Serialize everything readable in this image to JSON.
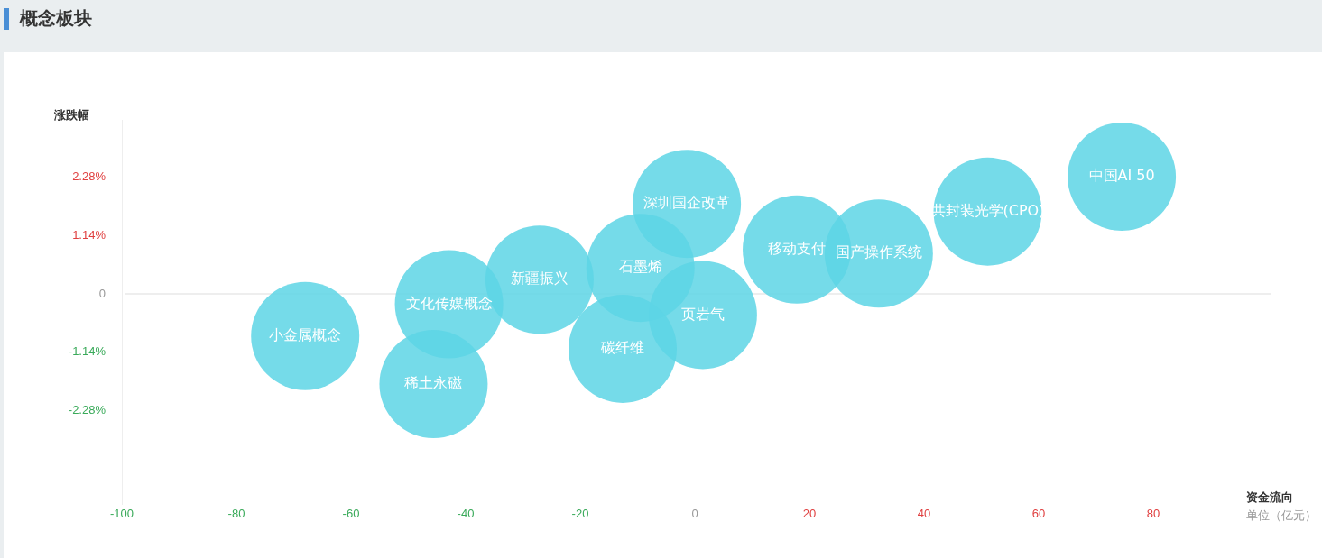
{
  "chart_data": {
    "type": "bubble",
    "title": "概念板块",
    "xlabel": "资金流向",
    "ylabel": "涨跌幅",
    "annotations": [
      "单位（亿元）"
    ],
    "xlim": [
      -100,
      100
    ],
    "xticks": [
      -100,
      -80,
      -60,
      -40,
      -20,
      0,
      20,
      40,
      60,
      80
    ],
    "ylim": [
      -4.1,
      3.4
    ],
    "yticks": [
      {
        "value": -2.28,
        "label": "-2.28%"
      },
      {
        "value": -1.14,
        "label": "-1.14%"
      },
      0,
      {
        "value": 1.14,
        "label": "1.14%"
      },
      {
        "value": 2.28,
        "label": "2.28%"
      }
    ],
    "grid": false,
    "legend": false,
    "ref_lines": [
      {
        "axis": "y",
        "value": 0,
        "color": "#eeeeee"
      }
    ],
    "series": [
      {
        "name": "小金属概念",
        "color": "#5dd5e5",
        "x": [
          -68
        ],
        "values": [
          -0.82
        ],
        "sizes": [
          1
        ]
      },
      {
        "name": "稀土永磁",
        "color": "#5dd5e5",
        "x": [
          -45.6
        ],
        "values": [
          -1.76
        ],
        "sizes": [
          1
        ]
      },
      {
        "name": "文化传媒概念",
        "color": "#5dd5e5",
        "x": [
          -42.9
        ],
        "values": [
          -0.2
        ],
        "sizes": [
          1
        ]
      },
      {
        "name": "新疆振兴",
        "color": "#5dd5e5",
        "x": [
          -27.1
        ],
        "values": [
          0.28
        ],
        "sizes": [
          1
        ]
      },
      {
        "name": "碳纤维",
        "color": "#5dd5e5",
        "x": [
          -12.6
        ],
        "values": [
          -1.07
        ],
        "sizes": [
          1
        ]
      },
      {
        "name": "石墨烯",
        "color": "#5dd5e5",
        "x": [
          -9.5
        ],
        "values": [
          0.51
        ],
        "sizes": [
          1
        ]
      },
      {
        "name": "深圳国企改革",
        "color": "#5dd5e5",
        "x": [
          -1.4
        ],
        "values": [
          1.76
        ],
        "sizes": [
          1
        ]
      },
      {
        "name": "页岩气",
        "color": "#5dd5e5",
        "x": [
          1.4
        ],
        "values": [
          -0.41
        ],
        "sizes": [
          1
        ]
      },
      {
        "name": "移动支付",
        "color": "#5dd5e5",
        "x": [
          17.8
        ],
        "values": [
          0.87
        ],
        "sizes": [
          1
        ]
      },
      {
        "name": "国产操作系统",
        "color": "#5dd5e5",
        "x": [
          32.1
        ],
        "values": [
          0.79
        ],
        "sizes": [
          1
        ]
      },
      {
        "name": "共封装光学(CPO)",
        "color": "#5dd5e5",
        "x": [
          51.1
        ],
        "values": [
          1.61
        ],
        "sizes": [
          1
        ]
      },
      {
        "name": "中国AI 50",
        "color": "#5dd5e5",
        "x": [
          74.5
        ],
        "values": [
          2.29
        ],
        "sizes": [
          1
        ]
      }
    ]
  }
}
